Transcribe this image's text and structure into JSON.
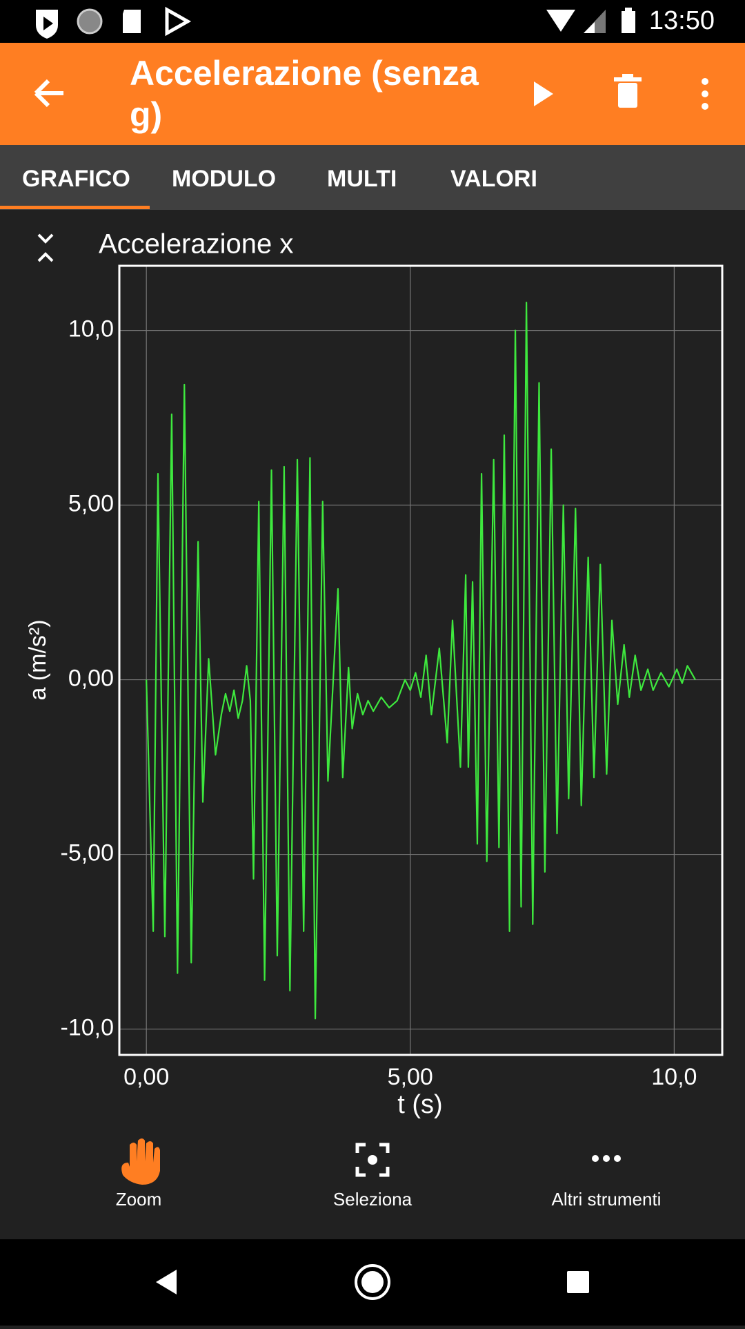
{
  "status_bar": {
    "time": "13:50"
  },
  "toolbar": {
    "title": "Accelerazione (senza g)"
  },
  "tabs": [
    "GRAFICO",
    "MODULO",
    "MULTI",
    "VALORI"
  ],
  "chart_data": {
    "type": "line",
    "title": "Accelerazione x",
    "x_label": "t (s)",
    "y_label": "a (m/s²)",
    "x": [
      0,
      0.13,
      0.22,
      0.35,
      0.48,
      0.59,
      0.72,
      0.85,
      0.98,
      1.07,
      1.18,
      1.31,
      1.42,
      1.5,
      1.58,
      1.66,
      1.74,
      1.82,
      1.9,
      1.97,
      2.03,
      2.13,
      2.24,
      2.37,
      2.48,
      2.61,
      2.72,
      2.86,
      2.98,
      3.1,
      3.2,
      3.34,
      3.44,
      3.63,
      3.72,
      3.83,
      3.9,
      4.0,
      4.1,
      4.2,
      4.3,
      4.45,
      4.6,
      4.75,
      4.9,
      5.0,
      5.1,
      5.2,
      5.3,
      5.4,
      5.55,
      5.7,
      5.8,
      5.95,
      6.05,
      6.1,
      6.18,
      6.27,
      6.35,
      6.45,
      6.58,
      6.68,
      6.78,
      6.88,
      6.99,
      7.1,
      7.2,
      7.32,
      7.44,
      7.55,
      7.67,
      7.78,
      7.9,
      8.0,
      8.13,
      8.24,
      8.37,
      8.48,
      8.6,
      8.72,
      8.82,
      8.93,
      9.05,
      9.15,
      9.26,
      9.37,
      9.5,
      9.6,
      9.75,
      9.9,
      10.05,
      10.15,
      10.25,
      10.4
    ],
    "series": [
      {
        "name": "Accelerazione x",
        "color": "#3ee83e",
        "values": [
          0,
          -7.2,
          5.9,
          -7.35,
          7.6,
          -8.4,
          8.45,
          -8.1,
          3.95,
          -3.5,
          0.6,
          -2.15,
          -1.0,
          -0.4,
          -0.9,
          -0.3,
          -1.1,
          -0.6,
          0.4,
          -0.6,
          -5.7,
          5.1,
          -8.6,
          6.0,
          -7.9,
          6.1,
          -8.9,
          6.3,
          -7.2,
          6.35,
          -9.7,
          5.1,
          -2.9,
          2.6,
          -2.8,
          0.35,
          -1.4,
          -0.4,
          -1.0,
          -0.6,
          -0.9,
          -0.5,
          -0.8,
          -0.6,
          0.0,
          -0.3,
          0.2,
          -0.5,
          0.7,
          -1.0,
          0.9,
          -1.8,
          1.7,
          -2.5,
          3.0,
          -2.5,
          2.8,
          -4.7,
          5.9,
          -5.2,
          6.3,
          -4.8,
          7.0,
          -7.2,
          10.0,
          -6.5,
          10.8,
          -7.0,
          8.5,
          -5.5,
          6.6,
          -4.4,
          5.0,
          -3.4,
          4.9,
          -3.6,
          3.5,
          -2.8,
          3.3,
          -2.7,
          1.7,
          -0.7,
          1.0,
          -0.5,
          0.7,
          -0.3,
          0.3,
          -0.3,
          0.2,
          -0.2,
          0.3,
          -0.1,
          0.4,
          0.0
        ]
      }
    ],
    "xlim": [
      -0.512,
      10.91
    ],
    "ylim": [
      -10.74,
      11.85
    ],
    "xticks": [
      {
        "value": 0,
        "label": "0,00"
      },
      {
        "value": 5,
        "label": "5,00"
      },
      {
        "value": 10,
        "label": "10,0"
      }
    ],
    "yticks": [
      {
        "value": -10,
        "label": "-10,0"
      },
      {
        "value": -5,
        "label": "-5,00"
      },
      {
        "value": 0,
        "label": "0,00"
      },
      {
        "value": 5,
        "label": "5,00"
      },
      {
        "value": 10,
        "label": "10,0"
      }
    ],
    "grid": true
  },
  "tools": [
    "Zoom",
    "Seleziona",
    "Altri strumenti"
  ]
}
